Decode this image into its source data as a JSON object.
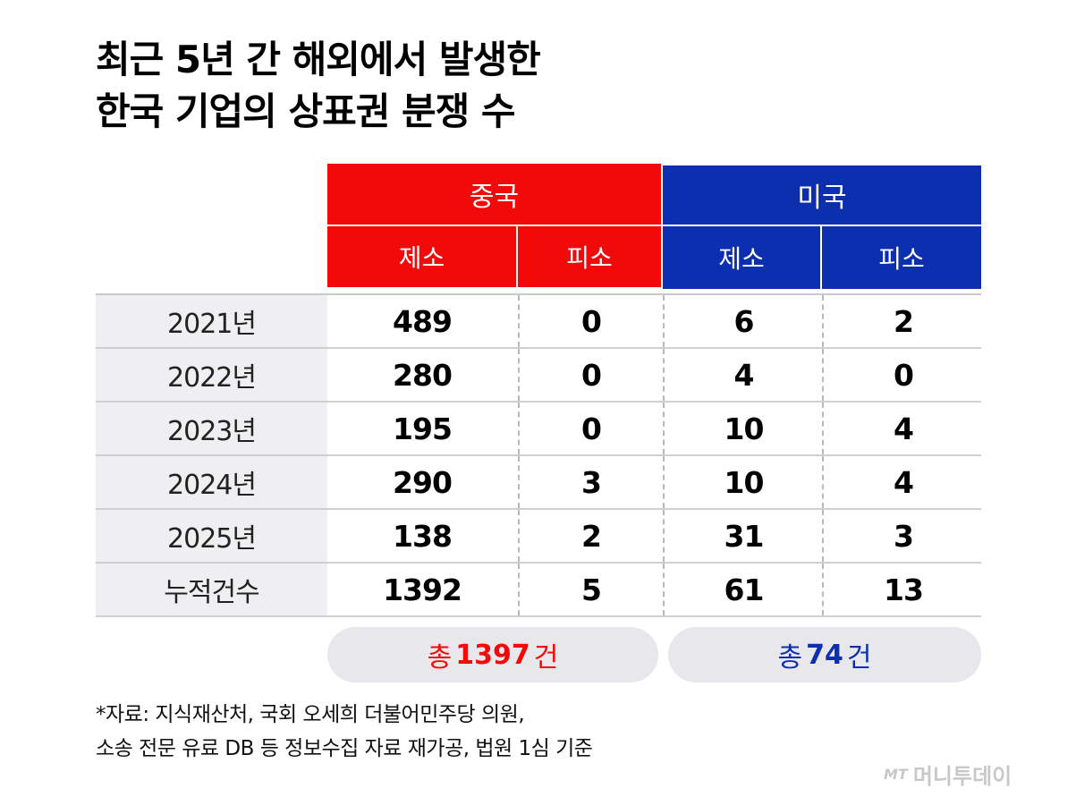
{
  "title": {
    "line1": "최근 5년 간 해외에서 발생한",
    "line2": "한국 기업의 상표권 분쟁 수"
  },
  "colors": {
    "china": "#f20a0a",
    "usa": "#0b2fae",
    "label_bg": "#efeff1",
    "pill_bg": "#e8e8ec"
  },
  "chart_data": {
    "type": "table",
    "groups": [
      {
        "name": "중국",
        "columns": [
          "제소",
          "피소"
        ]
      },
      {
        "name": "미국",
        "columns": [
          "제소",
          "피소"
        ]
      }
    ],
    "rows": [
      {
        "label": "2021년",
        "values": [
          489,
          0,
          6,
          2
        ]
      },
      {
        "label": "2022년",
        "values": [
          280,
          0,
          4,
          0
        ]
      },
      {
        "label": "2023년",
        "values": [
          195,
          0,
          10,
          4
        ]
      },
      {
        "label": "2024년",
        "values": [
          290,
          3,
          10,
          4
        ]
      },
      {
        "label": "2025년",
        "values": [
          138,
          2,
          31,
          3
        ]
      },
      {
        "label": "누적건수",
        "values": [
          1392,
          5,
          61,
          13
        ]
      }
    ],
    "totals": [
      {
        "prefix": "총",
        "value": "1397",
        "suffix": "건"
      },
      {
        "prefix": "총",
        "value": "74",
        "suffix": "건"
      }
    ]
  },
  "footnote": {
    "line1": "*자료: 지식재산처, 국회 오세희 더불어민주당 의원,",
    "line2": "소송 전문 유료 DB 등 정보수집 자료 재가공, 법원 1심 기준"
  },
  "logo": {
    "mark": "MT",
    "text": "머니투데이"
  }
}
